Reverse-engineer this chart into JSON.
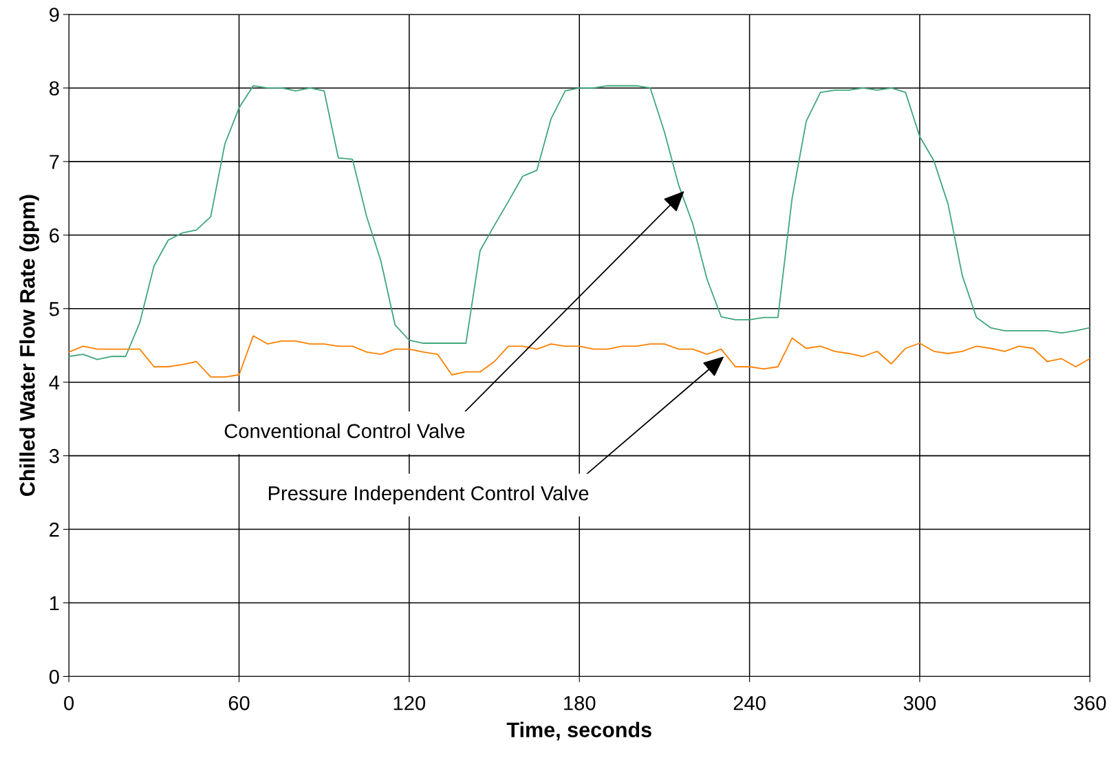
{
  "chart_data": {
    "type": "line",
    "xlabel": "Time, seconds",
    "ylabel": "Chilled Water Flow Rate (gpm)",
    "x": [
      0,
      5,
      10,
      15,
      20,
      25,
      30,
      35,
      40,
      45,
      50,
      55,
      60,
      65,
      70,
      75,
      80,
      85,
      90,
      95,
      100,
      105,
      110,
      115,
      120,
      125,
      130,
      135,
      140,
      145,
      150,
      155,
      160,
      165,
      170,
      175,
      180,
      185,
      190,
      195,
      200,
      205,
      210,
      215,
      220,
      225,
      230,
      235,
      240,
      245,
      250,
      255,
      260,
      265,
      270,
      275,
      280,
      285,
      290,
      295,
      300,
      305,
      310,
      315,
      320,
      325,
      330,
      335,
      340,
      345,
      350,
      355,
      360
    ],
    "series": [
      {
        "color": "#3fa67c",
        "values": [
          4.35,
          4.38,
          4.31,
          4.35,
          4.35,
          4.81,
          5.58,
          5.93,
          6.03,
          6.07,
          6.25,
          7.24,
          7.73,
          8.03,
          8.0,
          8.0,
          7.96,
          8.0,
          7.96,
          7.05,
          7.03,
          6.25,
          5.65,
          4.78,
          4.57,
          4.53,
          4.53,
          4.53,
          4.53,
          5.79,
          6.13,
          6.46,
          6.8,
          6.88,
          7.58,
          7.96,
          8.0,
          8.0,
          8.03,
          8.03,
          8.03,
          8.0,
          7.4,
          6.68,
          6.15,
          5.4,
          4.89,
          4.85,
          4.85,
          4.88,
          4.88,
          6.5,
          7.55,
          7.94,
          7.97,
          7.97,
          8.0,
          7.97,
          8.0,
          7.94,
          7.34,
          7.01,
          6.42,
          5.45,
          4.88,
          4.74,
          4.7,
          4.7,
          4.7,
          4.7,
          4.67,
          4.7,
          4.74
        ]
      },
      {
        "color": "#ff8000",
        "values": [
          4.41,
          4.49,
          4.45,
          4.45,
          4.45,
          4.45,
          4.21,
          4.21,
          4.24,
          4.28,
          4.07,
          4.07,
          4.1,
          4.63,
          4.52,
          4.56,
          4.56,
          4.52,
          4.52,
          4.49,
          4.49,
          4.41,
          4.38,
          4.45,
          4.45,
          4.41,
          4.38,
          4.1,
          4.14,
          4.14,
          4.28,
          4.49,
          4.49,
          4.45,
          4.52,
          4.49,
          4.49,
          4.45,
          4.45,
          4.49,
          4.49,
          4.52,
          4.52,
          4.45,
          4.45,
          4.38,
          4.45,
          4.21,
          4.21,
          4.18,
          4.21,
          4.6,
          4.46,
          4.49,
          4.42,
          4.39,
          4.35,
          4.42,
          4.25,
          4.46,
          4.53,
          4.42,
          4.39,
          4.42,
          4.49,
          4.46,
          4.42,
          4.49,
          4.46,
          4.28,
          4.32,
          4.21,
          4.32
        ]
      }
    ],
    "annotations": [
      {
        "text": "Conventional Control Valve",
        "x": 217,
        "y": 6.6
      },
      {
        "text": "Pressure Independent Control Valve",
        "x": 231,
        "y": 4.35
      }
    ],
    "xlim": [
      0,
      360
    ],
    "xticks": [
      0,
      60,
      120,
      180,
      240,
      300,
      360
    ],
    "ylim": [
      0,
      9
    ],
    "yticks": [
      0,
      1,
      2,
      3,
      4,
      5,
      6,
      7,
      8,
      9
    ],
    "grid": true,
    "legend": false,
    "marker": "none",
    "line_style": "solid"
  }
}
